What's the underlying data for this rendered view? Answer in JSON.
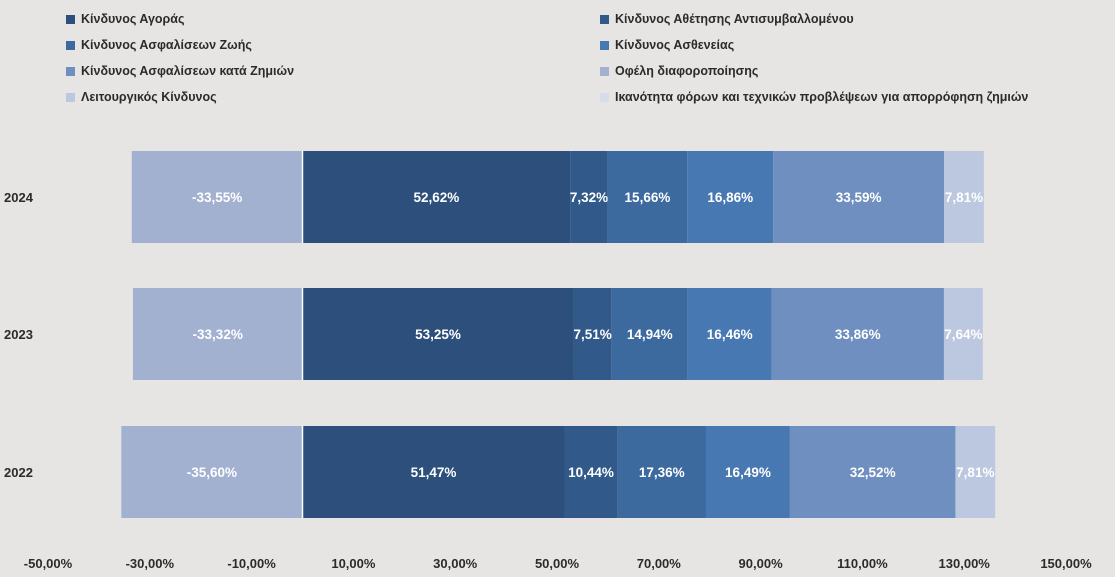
{
  "chart_data": {
    "type": "bar",
    "orientation": "horizontal",
    "stacked": true,
    "categories": [
      "2024",
      "2023",
      "2022"
    ],
    "xlim": [
      -50,
      150
    ],
    "x_ticks": [
      "-50,00%",
      "-30,00%",
      "-10,00%",
      "10,00%",
      "30,00%",
      "50,00%",
      "70,00%",
      "90,00%",
      "110,00%",
      "130,00%",
      "150,00%"
    ],
    "grid": false,
    "legend_position": "top",
    "series": [
      {
        "name": "Οφέλη διαφοροποίησης",
        "color": "#a2b1d0",
        "values": [
          -33.55,
          -33.32,
          -35.6
        ],
        "labels": [
          "-33,55%",
          "-33,32%",
          "-35,60%"
        ]
      },
      {
        "name": "Κίνδυνος Αγοράς",
        "color": "#2c4f7c",
        "values": [
          52.62,
          53.25,
          51.47
        ],
        "labels": [
          "52,62%",
          "53,25%",
          "51,47%"
        ]
      },
      {
        "name": "Κίνδυνος Αθέτησης Αντισυμβαλλομένου",
        "color": "#315a8a",
        "values": [
          7.32,
          7.51,
          10.44
        ],
        "labels": [
          "7,32%",
          "7,51%",
          "10,44%"
        ]
      },
      {
        "name": "Κίνδυνος Ασφαλίσεων Ζωής",
        "color": "#3c6a9f",
        "values": [
          15.66,
          14.94,
          17.36
        ],
        "labels": [
          "15,66%",
          "14,94%",
          "17,36%"
        ]
      },
      {
        "name": "Κίνδυνος Ασθενείας",
        "color": "#4878b2",
        "values": [
          16.86,
          16.46,
          16.49
        ],
        "labels": [
          "16,86%",
          "16,46%",
          "16,49%"
        ]
      },
      {
        "name": "Κίνδυνος Ασφαλίσεων κατά Ζημιών",
        "color": "#6f8fc0",
        "values": [
          33.59,
          33.86,
          32.52
        ],
        "labels": [
          "33,59%",
          "33,86%",
          "32,52%"
        ]
      },
      {
        "name": "Λειτουργικός Κίνδυνος",
        "color": "#bcc8e0",
        "values": [
          7.81,
          7.64,
          7.81
        ],
        "labels": [
          "7,81%",
          "7,64%",
          "7,81%"
        ]
      }
    ],
    "legend": [
      {
        "name": "Κίνδυνος Αγοράς",
        "color": "#2c4f7c"
      },
      {
        "name": "Κίνδυνος Αθέτησης Αντισυμβαλλομένου",
        "color": "#315a8a"
      },
      {
        "name": "Κίνδυνος Ασφαλίσεων Ζωής",
        "color": "#3c6a9f"
      },
      {
        "name": "Κίνδυνος Ασθενείας",
        "color": "#4878b2"
      },
      {
        "name": "Κίνδυνος Ασφαλίσεων κατά Ζημιών",
        "color": "#6f8fc0"
      },
      {
        "name": "Οφέλη διαφοροποίησης",
        "color": "#a2b1d0"
      },
      {
        "name": "Λειτουργικός Κίνδυνος",
        "color": "#bcc8e0"
      },
      {
        "name": "Ικανότητα φόρων και τεχνικών προβλέψεων για απορρόφηση ζημιών",
        "color": "#d6dcea"
      }
    ]
  }
}
